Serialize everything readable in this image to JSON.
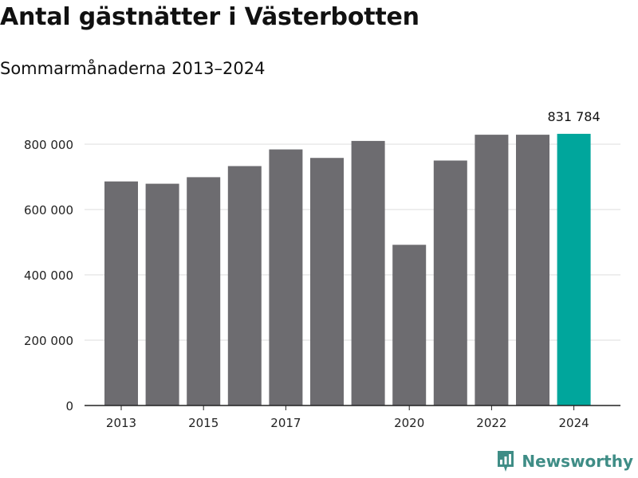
{
  "header": {
    "title": "Antal gästnätter i Västerbotten",
    "subtitle": "Sommarmånaderna 2013–2024"
  },
  "branding": {
    "logo_text": "Newsworthy",
    "logo_icon": "bar-chart-icon",
    "logo_color": "#3f8d86"
  },
  "chart_data": {
    "type": "bar",
    "categories": [
      "2013",
      "2014",
      "2015",
      "2016",
      "2017",
      "2018",
      "2019",
      "2020",
      "2021",
      "2022",
      "2023",
      "2024"
    ],
    "values": [
      686000,
      679000,
      699000,
      733000,
      784000,
      758000,
      810000,
      492000,
      750000,
      829000,
      829000,
      831784
    ],
    "x_tick_labels": [
      "2013",
      "",
      "2015",
      "",
      "2017",
      "",
      "",
      "2020",
      "",
      "2022",
      "",
      "2024"
    ],
    "y_ticks": [
      0,
      200000,
      400000,
      600000,
      800000
    ],
    "y_tick_labels": [
      "0",
      "200 000",
      "400 000",
      "600 000",
      "800 000"
    ],
    "ylim": [
      0,
      900000
    ],
    "annotation": {
      "category": "2024",
      "text": "831 784"
    },
    "colors": {
      "bar": "#6d6c70",
      "highlight": "#00a69c",
      "grid": "#dddddd"
    },
    "highlight_category": "2024",
    "grid": true,
    "xlabel": "",
    "ylabel": ""
  }
}
